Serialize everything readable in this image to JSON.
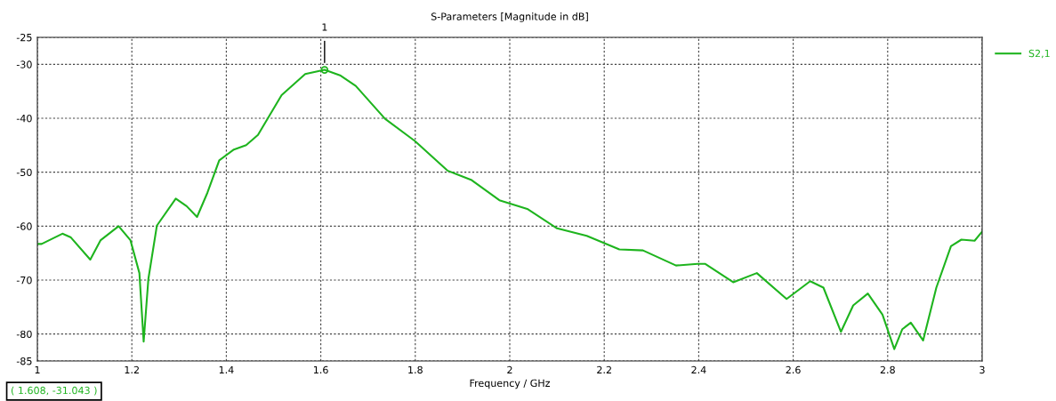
{
  "chart_data": {
    "type": "line",
    "title": "S-Parameters [Magnitude in dB]",
    "xlabel": "Frequency / GHz",
    "x": [
      1.0,
      1.009,
      1.053,
      1.071,
      1.112,
      1.134,
      1.172,
      1.197,
      1.216,
      1.225,
      1.235,
      1.253,
      1.293,
      1.316,
      1.338,
      1.36,
      1.385,
      1.416,
      1.442,
      1.467,
      1.517,
      1.567,
      1.608,
      1.642,
      1.674,
      1.736,
      1.799,
      1.868,
      1.918,
      1.978,
      2.037,
      2.1,
      2.163,
      2.232,
      2.282,
      2.352,
      2.398,
      2.414,
      2.473,
      2.523,
      2.586,
      2.636,
      2.664,
      2.701,
      2.727,
      2.758,
      2.789,
      2.814,
      2.831,
      2.849,
      2.875,
      2.903,
      2.934,
      2.956,
      2.984,
      3.0
    ],
    "series": [
      {
        "name": "S2,1",
        "color": "#1eb41e",
        "values": [
          -63.3,
          -63.3,
          -61.4,
          -62.1,
          -66.2,
          -62.6,
          -60.0,
          -62.6,
          -68.7,
          -81.4,
          -69.8,
          -59.9,
          -54.9,
          -56.3,
          -58.3,
          -53.8,
          -47.8,
          -45.8,
          -45.0,
          -43.1,
          -35.7,
          -31.8,
          -31.0,
          -32.1,
          -34.0,
          -40.1,
          -44.2,
          -49.7,
          -51.4,
          -55.2,
          -56.8,
          -60.4,
          -61.8,
          -64.3,
          -64.5,
          -67.3,
          -67.0,
          -67.0,
          -70.4,
          -68.7,
          -73.5,
          -70.2,
          -71.4,
          -79.6,
          -74.7,
          -72.5,
          -76.4,
          -82.8,
          -79.1,
          -77.9,
          -81.2,
          -71.4,
          -63.7,
          -62.5,
          -62.7,
          -61.0
        ]
      }
    ],
    "annotations": [
      {
        "text": "1",
        "x": 1.608,
        "y": -31.043
      },
      "( 1.608, -31.043 )"
    ],
    "xlim": [
      1,
      3
    ],
    "xticks": [
      1,
      1.2,
      1.4,
      1.6,
      1.8,
      2,
      2.2,
      2.4,
      2.6,
      2.8,
      3
    ],
    "ylim": [
      -85,
      -25
    ],
    "yticks": [
      -85,
      -80,
      -70,
      -60,
      -50,
      -40,
      -30,
      -25
    ],
    "grid": true,
    "legend": "top right",
    "marker": "none",
    "line_style": "solid"
  }
}
